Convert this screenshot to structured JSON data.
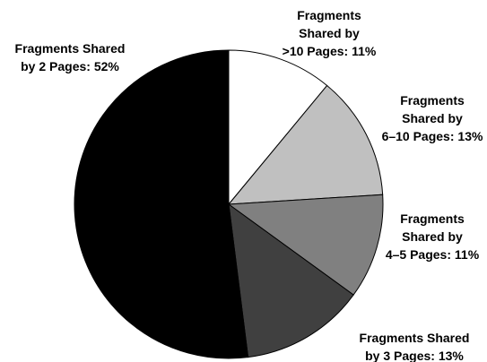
{
  "chart_data": {
    "type": "pie",
    "categories": [
      [
        "Fragments",
        "Shared by",
        ">10 Pages:"
      ],
      [
        "Fragments",
        "Shared by",
        "6–10 Pages:"
      ],
      [
        "Fragments",
        "Shared by",
        "4–5 Pages:"
      ],
      [
        "Fragments Shared",
        "by 3 Pages:"
      ],
      [
        "Fragments Shared",
        "by 2 Pages:"
      ]
    ],
    "values": [
      11,
      13,
      11,
      13,
      52
    ],
    "value_labels": [
      "11%",
      "13%",
      "11%",
      "13%",
      "52%"
    ],
    "colors": [
      "#ffffff",
      "#c0c0c0",
      "#808080",
      "#404040",
      "#000000"
    ]
  }
}
